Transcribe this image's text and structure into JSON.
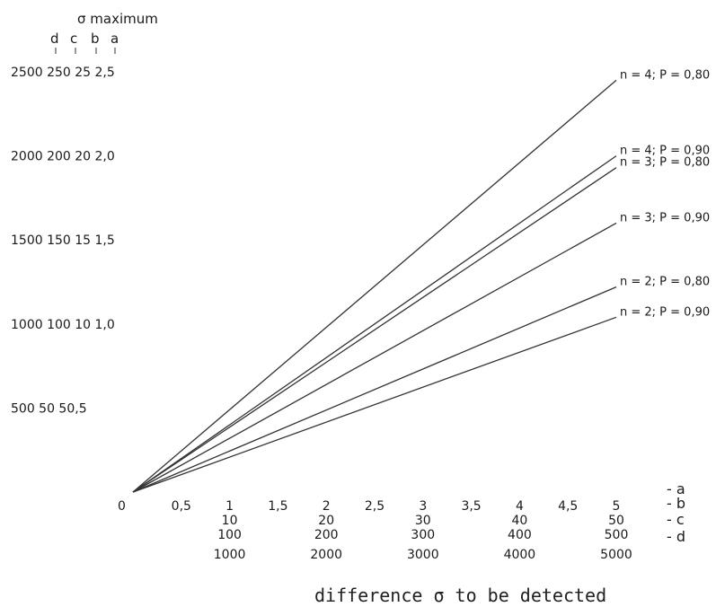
{
  "chart_data": {
    "type": "line",
    "ylabel_title": "σ maximum",
    "ylabel_cols": [
      "d",
      "c",
      "b",
      "a"
    ],
    "y_ticks": [
      {
        "value": 2.5,
        "label": "2500 250 25 2,5"
      },
      {
        "value": 2.0,
        "label": "2000 200 20 2,0"
      },
      {
        "value": 1.5,
        "label": "1500 150 15 1,5"
      },
      {
        "value": 1.0,
        "label": "1000 100 10 1,0"
      },
      {
        "value": 0.5,
        "label": "500 50 50,5"
      }
    ],
    "origin_label": "0",
    "x_ticks_a": [
      {
        "value": 0.5,
        "label": "0,5"
      },
      {
        "value": 1.0,
        "label": "1"
      },
      {
        "value": 1.5,
        "label": "1,5"
      },
      {
        "value": 2.0,
        "label": "2"
      },
      {
        "value": 2.5,
        "label": "2,5"
      },
      {
        "value": 3.0,
        "label": "3"
      },
      {
        "value": 3.5,
        "label": "3,5"
      },
      {
        "value": 4.0,
        "label": "4"
      },
      {
        "value": 4.5,
        "label": "4,5"
      },
      {
        "value": 5.0,
        "label": "5"
      }
    ],
    "x_ticks_b": [
      {
        "value": 1,
        "label": "10"
      },
      {
        "value": 2,
        "label": "20"
      },
      {
        "value": 3,
        "label": "30"
      },
      {
        "value": 4,
        "label": "40"
      },
      {
        "value": 5,
        "label": "50"
      }
    ],
    "x_ticks_c": [
      {
        "value": 1,
        "label": "100"
      },
      {
        "value": 2,
        "label": "200"
      },
      {
        "value": 3,
        "label": "300"
      },
      {
        "value": 4,
        "label": "400"
      },
      {
        "value": 5,
        "label": "500"
      }
    ],
    "x_ticks_d": [
      {
        "value": 1,
        "label": "1000"
      },
      {
        "value": 2,
        "label": "2000"
      },
      {
        "value": 3,
        "label": "3000"
      },
      {
        "value": 4,
        "label": "4000"
      },
      {
        "value": 5,
        "label": "5000"
      }
    ],
    "scale_letters": [
      "a",
      "b",
      "c",
      "d"
    ],
    "xlabel": "difference σ to be detected",
    "xlim": [
      0,
      5
    ],
    "ylim": [
      0,
      2.5
    ],
    "grid": false,
    "series": [
      {
        "name": "n = 4; P = 0,80",
        "x": [
          0,
          5
        ],
        "y": [
          0,
          2.45
        ]
      },
      {
        "name": "n = 4; P = 0,90",
        "x": [
          0,
          5
        ],
        "y": [
          0,
          2.0
        ]
      },
      {
        "name": "n = 3; P = 0,80",
        "x": [
          0,
          5
        ],
        "y": [
          0,
          1.93
        ]
      },
      {
        "name": "n = 3; P = 0,90",
        "x": [
          0,
          5
        ],
        "y": [
          0,
          1.6
        ]
      },
      {
        "name": "n = 2; P = 0,80",
        "x": [
          0,
          5
        ],
        "y": [
          0,
          1.22
        ]
      },
      {
        "name": "n = 2; P = 0,90",
        "x": [
          0,
          5
        ],
        "y": [
          0,
          1.04
        ]
      }
    ]
  }
}
